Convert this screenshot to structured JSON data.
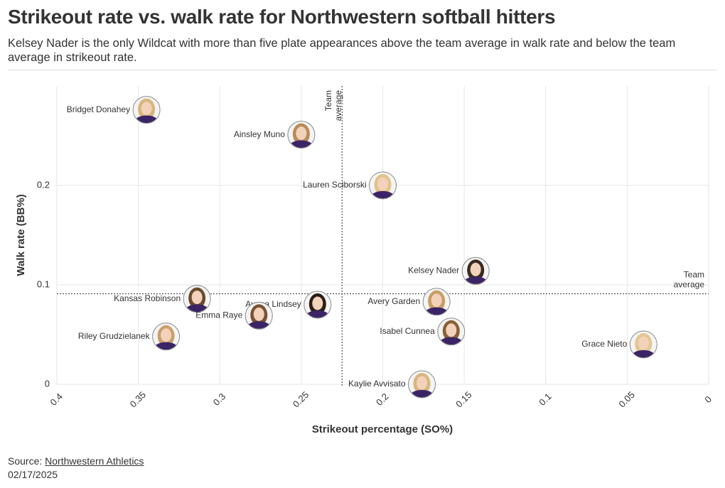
{
  "chart_data": {
    "type": "scatter",
    "title": "Strikeout rate vs. walk rate for Northwestern softball hitters",
    "subtitle": "Kelsey Nader is the only Wildcat with more than five plate appearances above the team average in walk rate and below the team average in strikeout rate.",
    "x_label": "Strikeout percentage (SO%)",
    "y_label": "Walk rate (BB%)",
    "xlim": [
      0.4,
      0
    ],
    "ylim": [
      0,
      0.3
    ],
    "xticks": [
      0.4,
      0.35,
      0.3,
      0.25,
      0.2,
      0.15,
      0.1,
      0.05,
      0
    ],
    "yticks": [
      0,
      0.1,
      0.2
    ],
    "grid": true,
    "labels": [
      "Bridget Donahey",
      "Ainsley Muno",
      "Lauren Sciborski",
      "Kelsey Nader",
      "Kansas Robinson",
      "Ayana Lindsey",
      "Emma Raye",
      "Avery Garden",
      "Isabel Cunnea",
      "Grace Nieto",
      "Riley Grudzielanek",
      "Kaylie Avvisato"
    ],
    "x": [
      0.345,
      0.25,
      0.2,
      0.143,
      0.314,
      0.24,
      0.276,
      0.167,
      0.158,
      0.04,
      0.333,
      0.176
    ],
    "values": [
      0.276,
      0.251,
      0.2,
      0.114,
      0.086,
      0.08,
      0.069,
      0.083,
      0.053,
      0.04,
      0.048,
      0
    ],
    "reference_lines": {
      "x": {
        "value": 0.225,
        "label": "Team average"
      },
      "y": {
        "value": 0.091,
        "label": "Team average"
      }
    },
    "source_label": "Source:",
    "source": "Northwestern Athletics",
    "date": "02/17/2025"
  }
}
